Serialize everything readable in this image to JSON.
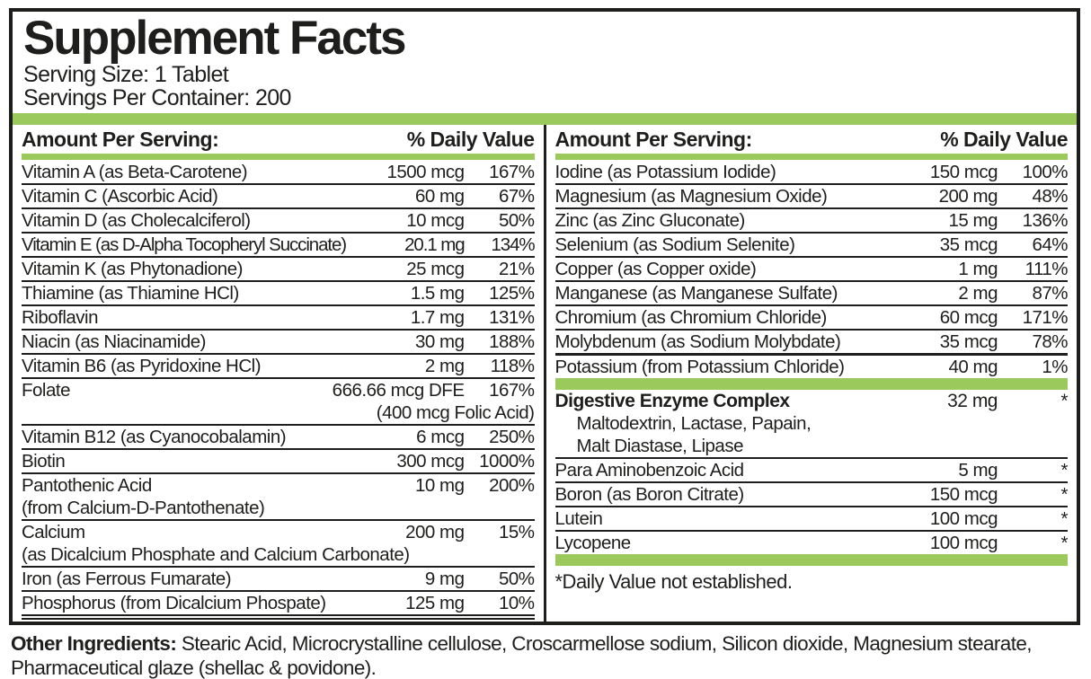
{
  "title": "Supplement Facts",
  "serving_size": "Serving Size: 1 Tablet",
  "servings_per_container": "Servings Per Container: 200",
  "columns": {
    "amount_header": "Amount Per Serving:",
    "dv_header": "% Daily Value"
  },
  "left_rows": [
    {
      "name": "Vitamin A (as Beta-Carotene)",
      "amount": "1500 mcg",
      "dv": "167%"
    },
    {
      "name": "Vitamin C (Ascorbic Acid)",
      "amount": "60 mg",
      "dv": "67%"
    },
    {
      "name": "Vitamin D (as Cholecalciferol)",
      "amount": "10 mcg",
      "dv": "50%"
    },
    {
      "name": "Vitamin E (as D-Alpha Tocopheryl Succinate)",
      "amount": "20.1 mg",
      "dv": "134%",
      "cls": "tight"
    },
    {
      "name": "Vitamin K (as Phytonadione)",
      "amount": "25 mcg",
      "dv": "21%"
    },
    {
      "name": "Thiamine (as Thiamine HCl)",
      "amount": "1.5 mg",
      "dv": "125%"
    },
    {
      "name": "Riboflavin",
      "amount": "1.7 mg",
      "dv": "131%"
    },
    {
      "name": "Niacin (as Niacinamide)",
      "amount": "30 mg",
      "dv": "188%"
    },
    {
      "name": "Vitamin B6 (as Pyridoxine HCl)",
      "amount": "2 mg",
      "dv": "118%"
    },
    {
      "name": "Folate",
      "amount": "666.66 mcg DFE",
      "dv": "167%",
      "subs": [
        "(400 mcg Folic Acid)"
      ],
      "sub_align": "right"
    },
    {
      "name": "Vitamin B12 (as Cyanocobalamin)",
      "amount": "6 mcg",
      "dv": "250%"
    },
    {
      "name": "Biotin",
      "amount": "300 mcg",
      "dv": "1000%"
    },
    {
      "name": "Pantothenic Acid",
      "amount": "10 mg",
      "dv": "200%",
      "subs": [
        "(from Calcium-D-Pantothenate)"
      ]
    },
    {
      "name": "Calcium",
      "amount": "200 mg",
      "dv": "15%",
      "subs": [
        "(as Dicalcium Phosphate and Calcium Carbonate)"
      ]
    },
    {
      "name": "Iron (as Ferrous Fumarate)",
      "amount": "9 mg",
      "dv": "50%"
    },
    {
      "name": "Phosphorus (from Dicalcium Phospate)",
      "amount": "125 mg",
      "dv": "10%",
      "b": "double"
    }
  ],
  "right_rows_top": [
    {
      "name": "Iodine (as Potassium Iodide)",
      "amount": "150 mcg",
      "dv": "100%"
    },
    {
      "name": "Magnesium (as Magnesium Oxide)",
      "amount": "200 mg",
      "dv": "48%"
    },
    {
      "name": "Zinc (as Zinc Gluconate)",
      "amount": "15 mg",
      "dv": "136%"
    },
    {
      "name": "Selenium (as Sodium Selenite)",
      "amount": "35 mcg",
      "dv": "64%"
    },
    {
      "name": "Copper (as Copper oxide)",
      "amount": "1 mg",
      "dv": "111%"
    },
    {
      "name": "Manganese (as Manganese Sulfate)",
      "amount": "2 mg",
      "dv": "87%"
    },
    {
      "name": "Chromium (as Chromium Chloride)",
      "amount": "60 mcg",
      "dv": "171%"
    },
    {
      "name": "Molybdenum (as Sodium Molybdate)",
      "amount": "35 mcg",
      "dv": "78%",
      "b": "thick"
    },
    {
      "name": "Potassium (from Potassium Chloride)",
      "amount": "40 mg",
      "dv": "1%",
      "b": "none"
    }
  ],
  "enzyme": {
    "name": "Digestive Enzyme Complex",
    "amount": "32 mg",
    "dv": "*",
    "subs": [
      "Maltodextrin, Lactase, Papain,",
      "Malt Diastase, Lipase"
    ]
  },
  "right_rows_bottom": [
    {
      "name": "Para Aminobenzoic Acid",
      "amount": "5 mg",
      "dv": "*"
    },
    {
      "name": "Boron (as Boron Citrate)",
      "amount": "150 mcg",
      "dv": "*"
    },
    {
      "name": "Lutein",
      "amount": "100 mcg",
      "dv": "*"
    },
    {
      "name": "Lycopene",
      "amount": "100 mcg",
      "dv": "*",
      "b": "none"
    }
  ],
  "footnote": "*Daily Value not established.",
  "other_ingredients_label": "Other Ingredients:",
  "other_ingredients_text": " Stearic Acid, Microcrystalline cellulose, Croscarmellose sodium, Silicon dioxide, Magnesium stearate, Pharmaceutical glaze (shellac & povidone).",
  "colors": {
    "green": "#9CC95C",
    "ink": "#1E1E1C"
  }
}
